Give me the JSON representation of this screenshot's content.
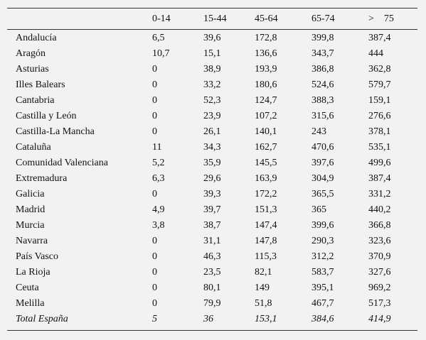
{
  "table": {
    "header": [
      "",
      "0-14",
      "15-44",
      "45-64",
      "65-74",
      ">    75"
    ],
    "rows": [
      [
        "Andalucía",
        "6,5",
        "39,6",
        "172,8",
        "399,8",
        "387,4"
      ],
      [
        "Aragón",
        "10,7",
        "15,1",
        "136,6",
        "343,7",
        "444"
      ],
      [
        "Asturias",
        "0",
        "38,9",
        "193,9",
        "386,8",
        "362,8"
      ],
      [
        "Illes Balears",
        "0",
        "33,2",
        "180,6",
        "524,6",
        "579,7"
      ],
      [
        "Cantabria",
        "0",
        "52,3",
        "124,7",
        "388,3",
        "159,1"
      ],
      [
        "Castilla y León",
        "0",
        "23,9",
        "107,2",
        "315,6",
        "276,6"
      ],
      [
        "Castilla-La Mancha",
        "0",
        "26,1",
        "140,1",
        "243",
        "378,1"
      ],
      [
        "Cataluña",
        "11",
        "34,3",
        "162,7",
        "470,6",
        "535,1"
      ],
      [
        "Comunidad Valenciana",
        "5,2",
        "35,9",
        "145,5",
        "397,6",
        "499,6"
      ],
      [
        "Extremadura",
        "6,3",
        "29,6",
        "163,9",
        "304,9",
        "387,4"
      ],
      [
        "Galicia",
        "0",
        "39,3",
        "172,2",
        "365,5",
        "331,2"
      ],
      [
        "Madrid",
        "4,9",
        "39,7",
        "151,3",
        "365",
        "440,2"
      ],
      [
        "Murcia",
        "3,8",
        "38,7",
        "147,4",
        "399,6",
        "366,8"
      ],
      [
        "Navarra",
        "0",
        "31,1",
        "147,8",
        "290,3",
        "323,6"
      ],
      [
        "País Vasco",
        "0",
        "46,3",
        "115,3",
        "312,2",
        "370,9"
      ],
      [
        "La Rioja",
        "0",
        "23,5",
        "82,1",
        "583,7",
        "327,6"
      ],
      [
        "Ceuta",
        "0",
        "80,1",
        "149",
        "395,1",
        "969,2"
      ],
      [
        "Melilla",
        "0",
        "79,9",
        "51,8",
        "467,7",
        "517,3"
      ]
    ],
    "total": [
      "Total España",
      "5",
      "36",
      "153,1",
      "384,6",
      "414,9"
    ]
  }
}
